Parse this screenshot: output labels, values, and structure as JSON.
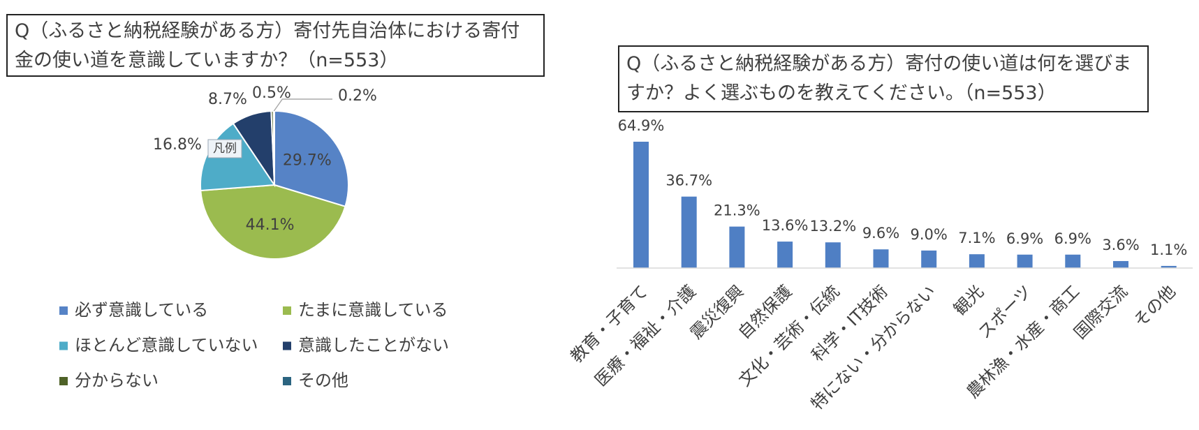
{
  "chart_data": [
    {
      "type": "pie",
      "title": "Q（ふるさと納税経験がある方）寄付先自治体における寄付金の使い道を意識していますか？（n=553）",
      "categories": [
        "必ず意識している",
        "たまに意識している",
        "ほとんど意識していない",
        "意識したことがない",
        "分からない",
        "その他"
      ],
      "values": [
        29.7,
        44.1,
        16.8,
        8.7,
        0.5,
        0.2
      ],
      "value_labels": [
        "29.7%",
        "44.1%",
        "16.8%",
        "8.7%",
        "0.5%",
        "0.2%"
      ],
      "colors": [
        "#5683c6",
        "#9bbb4f",
        "#4eacc8",
        "#233f6b",
        "#4f6228",
        "#2b6480"
      ],
      "legend_tooltip": "凡例"
    },
    {
      "type": "bar",
      "title": "Q（ふるさと納税経験がある方）寄付の使い道は何を選びますか？よく選ぶものを教えてください。（n=553）",
      "categories": [
        "教育・子育て",
        "医療・福祉・介護",
        "震災復興",
        "自然保護",
        "文化・芸術・伝統",
        "科学・IT技術",
        "特にない・分からない",
        "観光",
        "スポーツ",
        "農林漁・水産・商工",
        "国際交流",
        "その他"
      ],
      "values": [
        64.9,
        36.7,
        21.3,
        13.6,
        13.2,
        9.6,
        9.0,
        7.1,
        6.9,
        6.9,
        3.6,
        1.1
      ],
      "value_labels": [
        "64.9%",
        "36.7%",
        "21.3%",
        "13.6%",
        "13.2%",
        "9.6%",
        "9.0%",
        "7.1%",
        "6.9%",
        "6.9%",
        "3.6%",
        "1.1%"
      ],
      "color": "#4f7fc4"
    }
  ]
}
